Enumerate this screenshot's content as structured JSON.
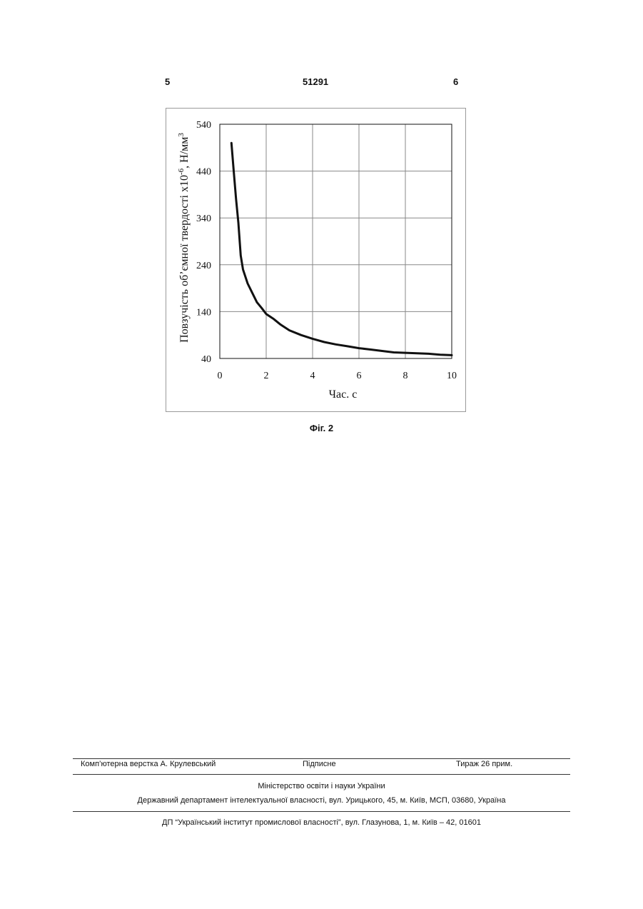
{
  "header": {
    "page_left": "5",
    "patent_number": "51291",
    "page_right": "6"
  },
  "figure": {
    "caption": "Фіг. 2"
  },
  "chart_data": {
    "type": "line",
    "title": "",
    "xlabel": "Час. с",
    "ylabel": "Повзучість об’ємної твердості х10",
    "ylabel_exp": "-6",
    "ylabel_unit": ", Н/мм",
    "ylabel_unit_exp": "3",
    "xlim": [
      0,
      10
    ],
    "ylim": [
      40,
      540
    ],
    "x_ticks": [
      "0",
      "2",
      "4",
      "6",
      "8",
      "10"
    ],
    "y_ticks": [
      "40",
      "140",
      "240",
      "340",
      "440",
      "540"
    ],
    "grid": true,
    "legend": "none",
    "series": [
      {
        "x": [
          0.5,
          0.6,
          0.7,
          0.8,
          0.9,
          1.0,
          1.2,
          1.4,
          1.6,
          1.8,
          2.0,
          2.3,
          2.6,
          3.0,
          3.5,
          4.0,
          4.5,
          5.0,
          5.5,
          6.0,
          6.5,
          7.0,
          7.5,
          8.0,
          8.5,
          9.0,
          9.5,
          10.0
        ],
        "y": [
          500,
          440,
          380,
          330,
          260,
          230,
          200,
          180,
          160,
          148,
          135,
          125,
          113,
          100,
          90,
          82,
          75,
          70,
          66,
          62,
          59,
          56,
          53,
          52,
          51,
          50,
          48,
          47
        ],
        "color": "#111111"
      }
    ]
  },
  "footer": {
    "layout_credit": "Комп’ютерна верстка А. Крулевський",
    "signed": "Підписне",
    "print_run": "Тираж 26 прим.",
    "ministry": "Міністерство освіти і науки України",
    "department": "Державний департамент інтелектуальної власності, вул. Урицького, 45, м. Київ, МСП, 03680, Україна",
    "institute": "ДП “Український інститут промислової власності”, вул. Глазунова, 1, м. Київ – 42, 01601"
  }
}
